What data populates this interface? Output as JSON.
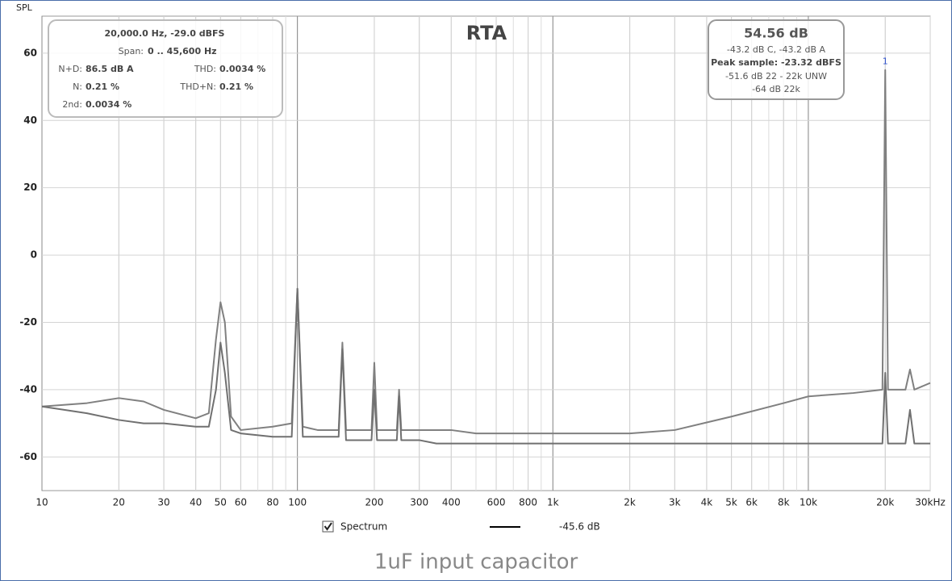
{
  "chart_data": {
    "type": "line",
    "title": "RTA",
    "y_label": "SPL",
    "caption": "1uF input capacitor",
    "x_log": true,
    "grid": true,
    "xlim": [
      10,
      30000
    ],
    "ylim": [
      -70,
      71
    ],
    "yticks": [
      -60,
      -40,
      -20,
      0,
      20,
      40,
      60
    ],
    "xticks": [
      10,
      20,
      30,
      40,
      50,
      60,
      80,
      100,
      200,
      300,
      400,
      600,
      800,
      {
        "value": 1000,
        "label": "1k"
      },
      {
        "value": 2000,
        "label": "2k"
      },
      {
        "value": 3000,
        "label": "3k"
      },
      {
        "value": 4000,
        "label": "4k"
      },
      {
        "value": 5000,
        "label": "5k"
      },
      {
        "value": 6000,
        "label": "6k"
      },
      {
        "value": 8000,
        "label": "8k"
      },
      {
        "value": 10000,
        "label": "10k"
      },
      {
        "value": 20000,
        "label": "20k"
      },
      {
        "value": 30000,
        "label": "30kHz"
      }
    ],
    "x": [
      10,
      15,
      20,
      25,
      30,
      40,
      45,
      48,
      50,
      52,
      55,
      60,
      80,
      95,
      100,
      105,
      120,
      145,
      150,
      155,
      195,
      200,
      205,
      245,
      250,
      255,
      300,
      350,
      400,
      500,
      700,
      1000,
      2000,
      3000,
      5000,
      8000,
      10000,
      15000,
      19500,
      20000,
      20500,
      24000,
      25000,
      26000,
      30000
    ],
    "series": [
      {
        "color": "#808080",
        "values": [
          -45,
          -44,
          -42.5,
          -43.5,
          -46,
          -48.5,
          -47,
          -25,
          -14,
          -20,
          -48,
          -52,
          -51,
          -50,
          -10,
          -51,
          -52,
          -52,
          -26,
          -52,
          -52,
          -32,
          -52,
          -52,
          -40,
          -52,
          -52,
          -52,
          -52,
          -53,
          -53,
          -53,
          -53,
          -52,
          -48,
          -44,
          -42,
          -41,
          -40,
          55,
          -40,
          -40,
          -34,
          -40,
          -38
        ]
      },
      {
        "color": "#707070",
        "values": [
          -45,
          -47,
          -49,
          -50,
          -50,
          -51,
          -51,
          -40,
          -26,
          -35,
          -52,
          -53,
          -54,
          -54,
          -10,
          -54,
          -54,
          -54,
          -28,
          -55,
          -55,
          -40,
          -55,
          -55,
          -42,
          -55,
          -55,
          -56,
          -56,
          -56,
          -56,
          -56,
          -56,
          -56,
          -56,
          -56,
          -56,
          -56,
          -56,
          -35,
          -56,
          -56,
          -46,
          -56,
          -56
        ]
      }
    ],
    "peak_marker": "1",
    "info_box": {
      "line1": "20,000.0 Hz, -29.0 dBFS",
      "line2_label": "Span:",
      "line2_value": "0 .. 45,600 Hz",
      "nd_label": "N+D:",
      "nd_value": "86.5 dB A",
      "thd_label": "THD:",
      "thd_value": "0.0034 %",
      "n_label": "N:",
      "n_value": "0.21 %",
      "thdn_label": "THD+N:",
      "thdn_value": "0.21 %",
      "second_label": "2nd:",
      "second_value": "0.0034 %"
    },
    "level_box": {
      "level": "54.56 dB",
      "weighted": "-43.2 dB C, -43.2 dB A",
      "peak": "Peak sample: -23.32 dBFS",
      "unw": "-51.6 dB 22 - 22k UNW",
      "band": "-64 dB 22k"
    },
    "legend": {
      "label": "Spectrum",
      "value_label": "-45.6 dB"
    }
  }
}
